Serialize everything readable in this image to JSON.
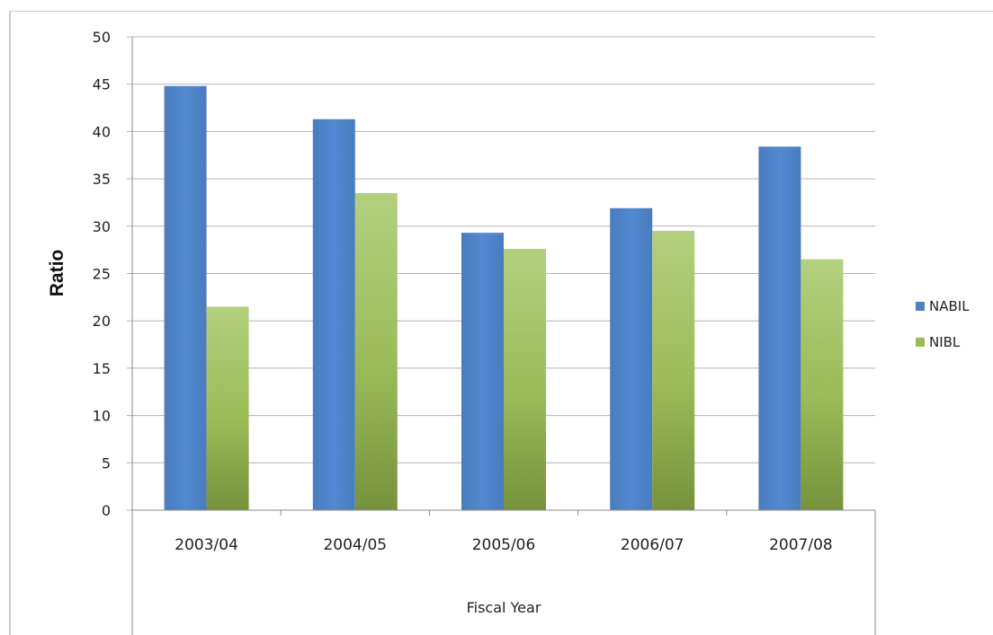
{
  "chart_data": {
    "type": "bar",
    "categories": [
      "2003/04",
      "2004/05",
      "2005/06",
      "2006/07",
      "2007/08"
    ],
    "series": [
      {
        "name": "NABIL",
        "values": [
          44.8,
          41.3,
          29.3,
          31.9,
          38.4
        ],
        "color": "#4f81bd"
      },
      {
        "name": "NIBL",
        "values": [
          21.5,
          33.5,
          27.6,
          29.5,
          26.5
        ],
        "color": "#9bbb59"
      }
    ],
    "title": "",
    "xlabel": "Fiscal Year",
    "ylabel": "Ratio",
    "ylim": [
      0,
      50
    ],
    "yticks": [
      "0",
      "5",
      "10",
      "15",
      "20",
      "25",
      "30",
      "35",
      "40",
      "45",
      "50"
    ],
    "grid": true,
    "legend_position": "right"
  }
}
